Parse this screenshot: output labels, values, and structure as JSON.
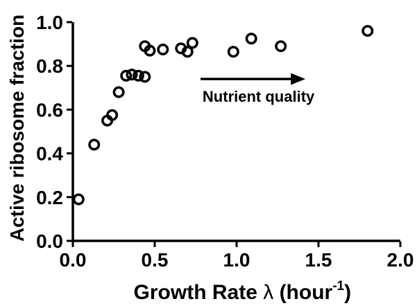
{
  "figure": {
    "background_color": "#ffffff",
    "foreground_color": "#000000"
  },
  "chart_data": {
    "type": "scatter",
    "title": "",
    "xlabel": "Growth Rate λ (hour-1)",
    "ylabel": "Active ribosome fraction",
    "xlabel_parts": {
      "main": "Growth Rate ",
      "lambda": "λ",
      "unit_open": " (hour",
      "superscript": "-1",
      "unit_close": ")"
    },
    "xlim": [
      0.0,
      2.0
    ],
    "ylim": [
      0.0,
      1.0
    ],
    "x_ticks": [
      0.0,
      0.5,
      1.0,
      1.5,
      2.0
    ],
    "x_tick_labels": [
      "0.0",
      "0.5",
      "1.0",
      "1.5",
      "2.0"
    ],
    "y_ticks": [
      0.0,
      0.2,
      0.4,
      0.6,
      0.8,
      1.0
    ],
    "y_tick_labels": [
      "0.0",
      "0.2",
      "0.4",
      "0.6",
      "0.8",
      "1.0"
    ],
    "grid": false,
    "legend": "none",
    "marker": {
      "shape": "open-circle",
      "color": "#000000",
      "outer_radius_px": 8.5,
      "stroke_px": 3.5
    },
    "points": [
      {
        "x": 0.035,
        "y": 0.19
      },
      {
        "x": 0.13,
        "y": 0.44
      },
      {
        "x": 0.21,
        "y": 0.55
      },
      {
        "x": 0.24,
        "y": 0.575
      },
      {
        "x": 0.28,
        "y": 0.68
      },
      {
        "x": 0.325,
        "y": 0.755
      },
      {
        "x": 0.36,
        "y": 0.76
      },
      {
        "x": 0.4,
        "y": 0.755
      },
      {
        "x": 0.44,
        "y": 0.75
      },
      {
        "x": 0.44,
        "y": 0.89
      },
      {
        "x": 0.47,
        "y": 0.87
      },
      {
        "x": 0.55,
        "y": 0.875
      },
      {
        "x": 0.66,
        "y": 0.88
      },
      {
        "x": 0.7,
        "y": 0.865
      },
      {
        "x": 0.73,
        "y": 0.905
      },
      {
        "x": 0.98,
        "y": 0.865
      },
      {
        "x": 1.09,
        "y": 0.925
      },
      {
        "x": 1.27,
        "y": 0.89
      },
      {
        "x": 1.8,
        "y": 0.96
      }
    ],
    "annotation": {
      "text": "Nutrient quality",
      "arrow": {
        "x_start": 0.78,
        "x_end": 1.42,
        "y": 0.74,
        "direction": "right"
      }
    }
  }
}
